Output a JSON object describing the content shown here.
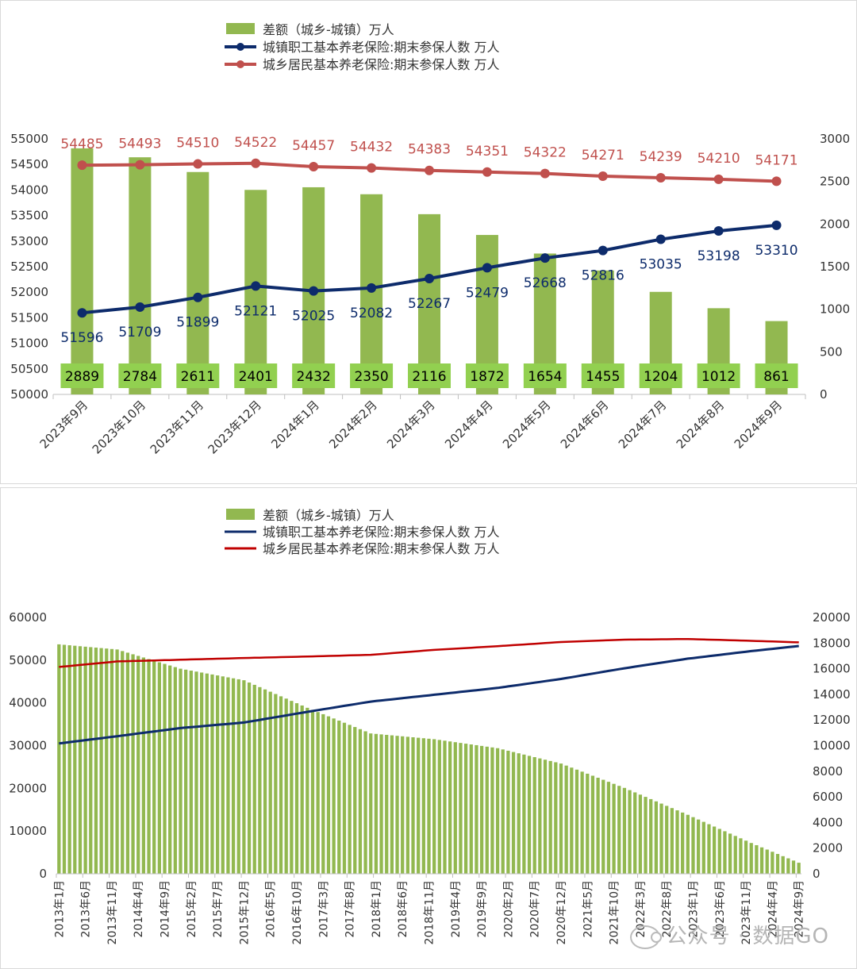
{
  "chart_data": [
    {
      "type": "bar+line",
      "legend": [
        {
          "label": "差额（城乡-城镇）万人",
          "kind": "bar",
          "color": "#92b850"
        },
        {
          "label": "城镇职工基本养老保险:期末参保人数 万人",
          "kind": "line-marker",
          "color": "#0d2b6b"
        },
        {
          "label": "城乡居民基本养老保险:期末参保人数 万人",
          "kind": "line-marker",
          "color": "#c0504d"
        }
      ],
      "categories": [
        "2023年9月",
        "2023年10月",
        "2023年11月",
        "2023年12月",
        "2024年1月",
        "2024年2月",
        "2024年3月",
        "2024年4月",
        "2024年5月",
        "2024年6月",
        "2024年7月",
        "2024年8月",
        "2024年9月"
      ],
      "left_axis": {
        "min": 50000,
        "max": 55000,
        "ticks": [
          50000,
          50500,
          51000,
          51500,
          52000,
          52500,
          53000,
          53500,
          54000,
          54500,
          55000
        ]
      },
      "right_axis": {
        "min": 0,
        "max": 3000,
        "ticks": [
          0,
          500,
          1000,
          1500,
          2000,
          2500,
          3000
        ]
      },
      "series": [
        {
          "name": "差额（城乡-城镇）万人",
          "axis": "right",
          "values": [
            2889,
            2784,
            2611,
            2401,
            2432,
            2350,
            2116,
            1872,
            1654,
            1455,
            1204,
            1012,
            861
          ]
        },
        {
          "name": "城镇职工基本养老保险:期末参保人数 万人",
          "axis": "left",
          "values": [
            51596,
            51709,
            51899,
            52121,
            52025,
            52082,
            52267,
            52479,
            52668,
            52816,
            53035,
            53198,
            53310
          ]
        },
        {
          "name": "城乡居民基本养老保险:期末参保人数 万人",
          "axis": "left",
          "values": [
            54485,
            54493,
            54510,
            54522,
            54457,
            54432,
            54383,
            54351,
            54322,
            54271,
            54239,
            54210,
            54171
          ]
        }
      ]
    },
    {
      "type": "bar+line",
      "legend": [
        {
          "label": "差额（城乡-城镇）万人",
          "kind": "bar",
          "color": "#92b850"
        },
        {
          "label": "城镇职工基本养老保险:期末参保人数 万人",
          "kind": "line",
          "color": "#0d2b6b"
        },
        {
          "label": "城乡居民基本养老保险:期末参保人数 万人",
          "kind": "line",
          "color": "#c00000"
        }
      ],
      "x_tick_labels": [
        "2013年1月",
        "2013年6月",
        "2013年11月",
        "2014年4月",
        "2014年9月",
        "2015年2月",
        "2015年7月",
        "2015年12月",
        "2016年5月",
        "2016年10月",
        "2017年3月",
        "2017年8月",
        "2018年1月",
        "2018年6月",
        "2018年11月",
        "2019年4月",
        "2019年9月",
        "2020年2月",
        "2020年7月",
        "2020年12月",
        "2021年5月",
        "2021年10月",
        "2022年3月",
        "2022年8月",
        "2023年1月",
        "2023年6月",
        "2023年11月",
        "2024年4月",
        "2024年9月"
      ],
      "left_axis": {
        "min": 0,
        "max": 60000,
        "ticks": [
          0,
          10000,
          20000,
          30000,
          40000,
          50000,
          60000
        ]
      },
      "right_axis": {
        "min": 0,
        "max": 20000,
        "ticks": [
          0,
          2000,
          4000,
          6000,
          8000,
          10000,
          12000,
          14000,
          16000,
          18000,
          20000
        ]
      },
      "period": {
        "start": "2013-01",
        "end": "2024-09",
        "months": 141
      },
      "series": [
        {
          "name": "城乡居民基本养老保险:期末参保人数 万人",
          "axis": "left",
          "anchors": [
            [
              "2013-01",
              48400
            ],
            [
              "2013-12",
              49700
            ],
            [
              "2014-12",
              50100
            ],
            [
              "2015-12",
              50500
            ],
            [
              "2016-12",
              50850
            ],
            [
              "2017-12",
              51250
            ],
            [
              "2018-12",
              52400
            ],
            [
              "2019-12",
              53270
            ],
            [
              "2020-12",
              54240
            ],
            [
              "2021-12",
              54800
            ],
            [
              "2022-12",
              54950
            ],
            [
              "2023-12",
              54522
            ],
            [
              "2024-09",
              54171
            ]
          ]
        },
        {
          "name": "城镇职工基本养老保险:期末参保人数 万人",
          "axis": "left",
          "anchors": [
            [
              "2013-01",
              30500
            ],
            [
              "2013-12",
              32200
            ],
            [
              "2014-12",
              34100
            ],
            [
              "2015-12",
              35400
            ],
            [
              "2016-12",
              37900
            ],
            [
              "2017-12",
              40300
            ],
            [
              "2018-12",
              41900
            ],
            [
              "2019-12",
              43500
            ],
            [
              "2020-12",
              45600
            ],
            [
              "2021-12",
              48100
            ],
            [
              "2022-12",
              50350
            ],
            [
              "2023-12",
              52121
            ],
            [
              "2024-09",
              53310
            ]
          ]
        },
        {
          "name": "差额（城乡-城镇）万人",
          "axis": "right",
          "anchors": [
            [
              "2013-01",
              17900
            ],
            [
              "2013-12",
              17500
            ],
            [
              "2014-12",
              16000
            ],
            [
              "2015-12",
              15100
            ],
            [
              "2016-12",
              12950
            ],
            [
              "2017-12",
              10950
            ],
            [
              "2018-12",
              10500
            ],
            [
              "2019-12",
              9800
            ],
            [
              "2020-12",
              8600
            ],
            [
              "2021-12",
              6700
            ],
            [
              "2022-12",
              4600
            ],
            [
              "2023-12",
              2401
            ],
            [
              "2024-09",
              861
            ]
          ]
        }
      ]
    }
  ],
  "watermark": {
    "text": "公众号 · 数据GO"
  }
}
